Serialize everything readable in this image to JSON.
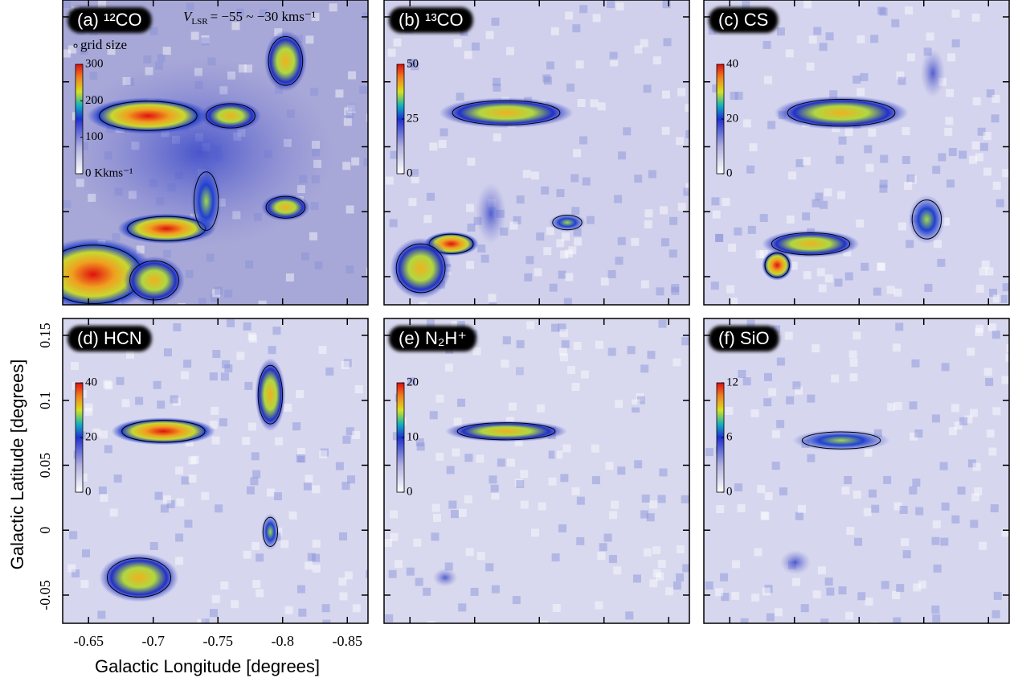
{
  "chart_data": [
    {
      "type": "heatmap",
      "title": "(a) ¹²CO",
      "cbar_lim": [
        0,
        300
      ],
      "cbar_ticks": [
        {
          "value": 0,
          "label": "0 Kkms⁻¹"
        },
        100,
        200,
        300
      ],
      "annotation": {
        "symbol": "V",
        "subscript": "LSR",
        "text": "= −55 ~ −30 kms⁻¹"
      },
      "note": "grid size"
    },
    {
      "type": "heatmap",
      "title": "(b) ¹³CO",
      "cbar_lim": [
        0,
        50
      ],
      "cbar_ticks": [
        0,
        25,
        50
      ]
    },
    {
      "type": "heatmap",
      "title": "(c) CS",
      "cbar_lim": [
        0,
        40
      ],
      "cbar_ticks": [
        0,
        20,
        40
      ]
    },
    {
      "type": "heatmap",
      "title": "(d) HCN",
      "cbar_lim": [
        0,
        40
      ],
      "cbar_ticks": [
        0,
        20,
        40
      ],
      "xlabel": "Galactic Longitude [degrees]",
      "ylabel": "Galactic Latitude [degrees]",
      "xlim": [
        -0.63,
        -0.866
      ],
      "ylim": [
        -0.0717,
        0.163
      ],
      "xticks": [
        -0.65,
        -0.7,
        -0.75,
        -0.8,
        -0.85
      ],
      "yticks": [
        -0.05,
        0,
        0.05,
        0.1,
        0.15
      ]
    },
    {
      "type": "heatmap",
      "title": "(e) N₂H⁺",
      "cbar_lim": [
        0,
        20
      ],
      "cbar_ticks": [
        0,
        10,
        20
      ]
    },
    {
      "type": "heatmap",
      "title": "(f) SiO",
      "cbar_lim": [
        0,
        12
      ],
      "cbar_ticks": [
        0,
        6,
        12
      ]
    }
  ]
}
